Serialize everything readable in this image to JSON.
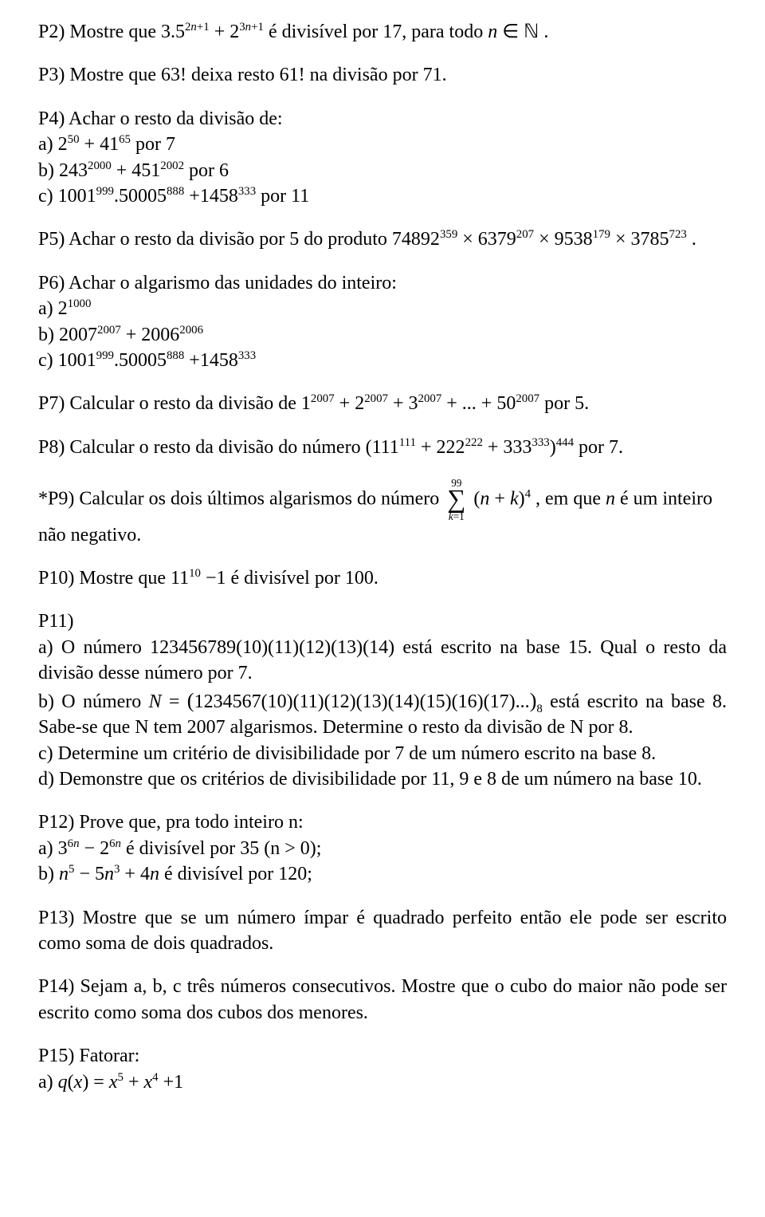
{
  "p2": "P2) Mostre que  3.5²ⁿ⁺¹ + 2³ⁿ⁺¹  é divisível por 17, para todo  n ∈ ℕ .",
  "p3": "P3) Mostre que  63!  deixa resto  61!  na divisão por 71.",
  "p4": {
    "head": "P4) Achar o resto da divisão de:",
    "a": "a)  2⁵⁰ + 41⁶⁵  por 7",
    "b": "b)  243²⁰⁰⁰ + 451²⁰⁰²  por 6",
    "c": "c)  1001⁹⁹⁹.50005⁸⁸⁸ + 1458³³³  por 11"
  },
  "p5": "P5) Achar o resto da divisão por 5 do produto  74892³⁵⁹ × 6379²⁰⁷ × 9538¹⁷⁹ × 3785⁷²³ .",
  "p6": {
    "head": "P6) Achar o algarismo das unidades do inteiro:",
    "a": "a)  2¹⁰⁰⁰",
    "b": "b)  2007²⁰⁰⁷ + 2006²⁰⁰⁶",
    "c": "c)  1001⁹⁹⁹.50005⁸⁸⁸ + 1458³³³"
  },
  "p7": "P7) Calcular o resto da divisão de  1²⁰⁰⁷ + 2²⁰⁰⁷ + 3²⁰⁰⁷ + ... + 50²⁰⁰⁷  por 5.",
  "p8": "P8) Calcular o resto da divisão do número  (111¹¹¹ + 222²²² + 333³³³)⁴⁴⁴  por 7.",
  "p9": {
    "pre": "*P9) Calcular os dois últimos algarismos do número ",
    "sum_top": "99",
    "sum_bot": "k=1",
    "body": "(n + k)⁴",
    "post1": " , em que n é um inteiro",
    "post2": "não negativo."
  },
  "p10": "P10) Mostre que  11¹⁰ − 1  é divisível por 100.",
  "p11": {
    "head": "P11)",
    "a": "a) O número  123456789(10)(11)(12)(13)(14)  está escrito na base 15. Qual o resto da divisão desse número por 7.",
    "b_pre": "b) O número  N = ",
    "b_expr": "1234567(10)(11)(12)(13)(14)(15)(16)(17)...",
    "b_sub": "8",
    "b_post": "  está escrito na base 8. Sabe-se que N tem 2007 algarismos. Determine o resto da divisão de N por 8.",
    "c": "c) Determine um critério de divisibilidade por 7 de um número escrito na base 8.",
    "d": "d) Demonstre que os critérios de divisibilidade por 11, 9 e 8 de um número na base 10."
  },
  "p12": {
    "head": "P12) Prove que, pra todo inteiro n:",
    "a": "a)  3⁶ⁿ − 2⁶ⁿ  é divisível por 35 (n > 0);",
    "b": "b)  n⁵ − 5n³ + 4n  é divisível por 120;"
  },
  "p13": "P13) Mostre que se um número ímpar é quadrado perfeito então ele pode ser escrito como soma de dois quadrados.",
  "p14": "P14) Sejam a, b, c três números consecutivos. Mostre que o cubo do maior não pode ser escrito como soma dos cubos dos menores.",
  "p15": {
    "head": "P15) Fatorar:",
    "a": "a)  q(x) = x⁵ + x⁴ + 1"
  }
}
